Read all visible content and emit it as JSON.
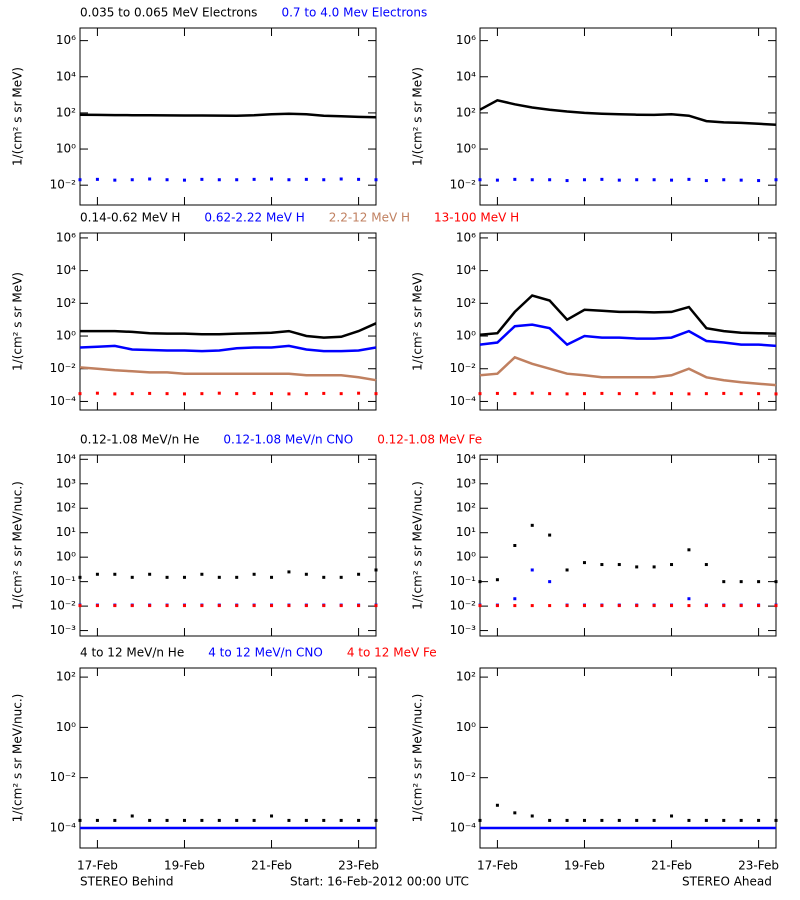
{
  "chart_data": [
    {
      "type": "line",
      "log": true,
      "ylabel": "1/(cm² s sr MeV)",
      "xlim": [
        0.6,
        7.4
      ],
      "xticks": [
        1,
        3,
        5,
        7
      ],
      "ylim": [
        0.0008,
        5000000
      ],
      "yticks": [
        {
          "value": 0.01,
          "label": "10⁻²"
        },
        {
          "value": 1,
          "label": "10⁰"
        },
        {
          "value": 100,
          "label": "10²"
        },
        {
          "value": 10000,
          "label": "10⁴"
        },
        {
          "value": 1000000,
          "label": "10⁶"
        }
      ],
      "x": [
        0.6,
        1.0,
        1.4,
        1.8,
        2.2,
        2.6,
        3.0,
        3.4,
        3.8,
        4.2,
        4.6,
        5.0,
        5.4,
        5.8,
        6.2,
        6.6,
        7.0,
        7.4
      ],
      "series": [
        {
          "name": "0.035 to 0.065 MeV Electrons",
          "color": "#000000",
          "style": "line",
          "values": [
            80,
            78,
            76,
            75,
            74,
            73,
            72,
            72,
            71,
            70,
            75,
            85,
            90,
            85,
            70,
            65,
            60,
            58
          ]
        },
        {
          "name": "0.7 to 4.0 Mev Electrons",
          "color": "#0000ff",
          "style": "points",
          "values": [
            0.02,
            0.021,
            0.019,
            0.02,
            0.022,
            0.02,
            0.019,
            0.021,
            0.02,
            0.02,
            0.021,
            0.022,
            0.02,
            0.021,
            0.02,
            0.022,
            0.021,
            0.02
          ]
        }
      ]
    },
    {
      "type": "line",
      "log": true,
      "ylabel": "1/(cm² s sr MeV)",
      "xlim": [
        0.6,
        7.4
      ],
      "xticks": [
        1,
        3,
        5,
        7
      ],
      "ylim": [
        0.0008,
        5000000
      ],
      "yticks": [
        {
          "value": 0.01,
          "label": "10⁻²"
        },
        {
          "value": 1,
          "label": "10⁰"
        },
        {
          "value": 100,
          "label": "10²"
        },
        {
          "value": 10000,
          "label": "10⁴"
        },
        {
          "value": 1000000,
          "label": "10⁶"
        }
      ],
      "x": [
        0.6,
        1.0,
        1.4,
        1.8,
        2.2,
        2.6,
        3.0,
        3.4,
        3.8,
        4.2,
        4.6,
        5.0,
        5.4,
        5.8,
        6.2,
        6.6,
        7.0,
        7.4
      ],
      "series": [
        {
          "color": "#000000",
          "style": "line",
          "values": [
            150,
            500,
            300,
            200,
            150,
            120,
            100,
            90,
            85,
            80,
            78,
            85,
            70,
            35,
            30,
            28,
            25,
            22
          ]
        },
        {
          "color": "#0000ff",
          "style": "points",
          "values": [
            0.02,
            0.019,
            0.021,
            0.02,
            0.02,
            0.018,
            0.02,
            0.021,
            0.019,
            0.02,
            0.02,
            0.019,
            0.021,
            0.018,
            0.02,
            0.019,
            0.018,
            0.02
          ]
        }
      ]
    },
    {
      "type": "line",
      "log": true,
      "ylabel": "1/(cm² s sr MeV)",
      "xlim": [
        0.6,
        7.4
      ],
      "xticks": [
        1,
        3,
        5,
        7
      ],
      "ylim": [
        3e-05,
        2000000
      ],
      "yticks": [
        {
          "value": 0.0001,
          "label": "10⁻⁴"
        },
        {
          "value": 0.01,
          "label": "10⁻²"
        },
        {
          "value": 1,
          "label": "10⁰"
        },
        {
          "value": 100,
          "label": "10²"
        },
        {
          "value": 10000,
          "label": "10⁴"
        },
        {
          "value": 1000000,
          "label": "10⁶"
        }
      ],
      "x": [
        0.6,
        1.0,
        1.4,
        1.8,
        2.2,
        2.6,
        3.0,
        3.4,
        3.8,
        4.2,
        4.6,
        5.0,
        5.4,
        5.8,
        6.2,
        6.6,
        7.0,
        7.4
      ],
      "series": [
        {
          "name": "0.14-0.62 MeV H",
          "color": "#000000",
          "style": "line",
          "values": [
            2,
            2,
            2,
            1.8,
            1.5,
            1.4,
            1.4,
            1.3,
            1.3,
            1.4,
            1.5,
            1.6,
            2,
            1,
            0.8,
            0.9,
            2,
            6
          ]
        },
        {
          "name": "0.62-2.22 MeV H",
          "color": "#0000ff",
          "style": "line",
          "values": [
            0.2,
            0.22,
            0.25,
            0.15,
            0.14,
            0.13,
            0.13,
            0.12,
            0.13,
            0.18,
            0.2,
            0.2,
            0.25,
            0.15,
            0.12,
            0.12,
            0.13,
            0.2
          ]
        },
        {
          "name": "2.2-12 MeV H",
          "color": "#c08060",
          "style": "line",
          "values": [
            0.012,
            0.01,
            0.008,
            0.007,
            0.006,
            0.006,
            0.005,
            0.005,
            0.005,
            0.005,
            0.005,
            0.005,
            0.005,
            0.004,
            0.004,
            0.004,
            0.003,
            0.002
          ]
        },
        {
          "name": "13-100 MeV H",
          "color": "#ff0000",
          "style": "points",
          "values": [
            0.0003,
            0.00032,
            0.00029,
            0.0003,
            0.00031,
            0.0003,
            0.00029,
            0.0003,
            0.00032,
            0.0003,
            0.00031,
            0.0003,
            0.00029,
            0.0003,
            0.00031,
            0.0003,
            0.00032,
            0.0003
          ]
        }
      ]
    },
    {
      "type": "line",
      "log": true,
      "ylabel": "1/(cm² s sr MeV)",
      "xlim": [
        0.6,
        7.4
      ],
      "xticks": [
        1,
        3,
        5,
        7
      ],
      "ylim": [
        3e-05,
        2000000
      ],
      "yticks": [
        {
          "value": 0.0001,
          "label": "10⁻⁴"
        },
        {
          "value": 0.01,
          "label": "10⁻²"
        },
        {
          "value": 1,
          "label": "10⁰"
        },
        {
          "value": 100,
          "label": "10²"
        },
        {
          "value": 10000,
          "label": "10⁴"
        },
        {
          "value": 1000000,
          "label": "10⁶"
        }
      ],
      "x": [
        0.6,
        1.0,
        1.4,
        1.8,
        2.2,
        2.6,
        3.0,
        3.4,
        3.8,
        4.2,
        4.6,
        5.0,
        5.4,
        5.8,
        6.2,
        6.6,
        7.0,
        7.4
      ],
      "series": [
        {
          "color": "#000000",
          "style": "line",
          "values": [
            1.2,
            1.5,
            30,
            300,
            150,
            10,
            40,
            35,
            30,
            30,
            28,
            30,
            60,
            3,
            2,
            1.6,
            1.5,
            1.4
          ]
        },
        {
          "color": "#0000ff",
          "style": "line",
          "values": [
            0.3,
            0.4,
            4,
            5,
            3,
            0.3,
            1,
            0.8,
            0.8,
            0.7,
            0.7,
            0.8,
            2,
            0.5,
            0.4,
            0.3,
            0.3,
            0.25
          ]
        },
        {
          "color": "#c08060",
          "style": "line",
          "values": [
            0.004,
            0.005,
            0.05,
            0.02,
            0.01,
            0.005,
            0.004,
            0.003,
            0.003,
            0.003,
            0.003,
            0.004,
            0.01,
            0.003,
            0.002,
            0.0015,
            0.0012,
            0.001
          ]
        },
        {
          "color": "#ff0000",
          "style": "points",
          "values": [
            0.0003,
            0.00031,
            0.0003,
            0.00032,
            0.0003,
            0.00029,
            0.0003,
            0.00031,
            0.0003,
            0.0003,
            0.00032,
            0.0003,
            0.00029,
            0.0003,
            0.00031,
            0.0003,
            0.0003,
            0.00029
          ]
        }
      ]
    },
    {
      "type": "line",
      "log": true,
      "ylabel": "1/(cm² s sr MeV/nuc.)",
      "xlim": [
        0.6,
        7.4
      ],
      "xticks": [
        1,
        3,
        5,
        7
      ],
      "ylim": [
        0.0006,
        15000
      ],
      "yticks": [
        {
          "value": 0.001,
          "label": "10⁻³"
        },
        {
          "value": 0.01,
          "label": "10⁻²"
        },
        {
          "value": 0.1,
          "label": "10⁻¹"
        },
        {
          "value": 1,
          "label": "10⁰"
        },
        {
          "value": 10,
          "label": "10¹"
        },
        {
          "value": 100,
          "label": "10²"
        },
        {
          "value": 1000,
          "label": "10³"
        },
        {
          "value": 10000,
          "label": "10⁴"
        }
      ],
      "x": [
        0.6,
        1.0,
        1.4,
        1.8,
        2.2,
        2.6,
        3.0,
        3.4,
        3.8,
        4.2,
        4.6,
        5.0,
        5.4,
        5.8,
        6.2,
        6.6,
        7.0,
        7.4
      ],
      "series": [
        {
          "name": "0.12-1.08 MeV/n He",
          "color": "#000000",
          "style": "points",
          "values": [
            0.15,
            0.2,
            0.2,
            0.15,
            0.2,
            0.15,
            0.15,
            0.2,
            0.15,
            0.15,
            0.2,
            0.15,
            0.25,
            0.2,
            0.15,
            0.15,
            0.2,
            0.3
          ]
        },
        {
          "name": "0.12-1.08 MeV/n CNO",
          "color": "#0000ff",
          "style": "points",
          "values": [
            0.011,
            0.011,
            0.011,
            0.011,
            0.011,
            0.011,
            0.011,
            0.011,
            0.011,
            0.011,
            0.011,
            0.011,
            0.011,
            0.011,
            0.011,
            0.011,
            0.011,
            0.011
          ]
        },
        {
          "name": "0.12-1.08 MeV Fe",
          "color": "#ff0000",
          "style": "points",
          "values": [
            0.0105,
            0.0105,
            0.0105,
            0.0105,
            0.0105,
            0.0105,
            0.0105,
            0.0105,
            0.0105,
            0.0105,
            0.0105,
            0.0105,
            0.0105,
            0.0105,
            0.0105,
            0.0105,
            0.0105,
            0.0105
          ]
        }
      ]
    },
    {
      "type": "line",
      "log": true,
      "ylabel": "1/(cm² s sr MeV/nuc.)",
      "xlim": [
        0.6,
        7.4
      ],
      "xticks": [
        1,
        3,
        5,
        7
      ],
      "ylim": [
        0.0006,
        15000
      ],
      "yticks": [
        {
          "value": 0.001,
          "label": "10⁻³"
        },
        {
          "value": 0.01,
          "label": "10⁻²"
        },
        {
          "value": 0.1,
          "label": "10⁻¹"
        },
        {
          "value": 1,
          "label": "10⁰"
        },
        {
          "value": 10,
          "label": "10¹"
        },
        {
          "value": 100,
          "label": "10²"
        },
        {
          "value": 1000,
          "label": "10³"
        },
        {
          "value": 10000,
          "label": "10⁴"
        }
      ],
      "x": [
        0.6,
        1.0,
        1.4,
        1.8,
        2.2,
        2.6,
        3.0,
        3.4,
        3.8,
        4.2,
        4.6,
        5.0,
        5.4,
        5.8,
        6.2,
        6.6,
        7.0,
        7.4
      ],
      "series": [
        {
          "color": "#000000",
          "style": "points",
          "values": [
            0.1,
            0.12,
            3,
            20,
            8,
            0.3,
            0.6,
            0.5,
            0.5,
            0.4,
            0.4,
            0.5,
            2,
            0.5,
            0.1,
            0.1,
            0.1,
            0.1
          ]
        },
        {
          "color": "#0000ff",
          "style": "points",
          "values": [
            0.011,
            0.011,
            0.02,
            0.3,
            0.1,
            0.011,
            0.011,
            0.011,
            0.011,
            0.011,
            0.011,
            0.011,
            0.02,
            0.011,
            0.011,
            0.011,
            0.011,
            0.011
          ]
        },
        {
          "color": "#ff0000",
          "style": "points",
          "values": [
            0.0105,
            0.0105,
            0.0105,
            0.0105,
            0.0105,
            0.0105,
            0.0105,
            0.0105,
            0.0105,
            0.0105,
            0.0105,
            0.0105,
            0.0105,
            0.0105,
            0.0105,
            0.0105,
            0.0105,
            0.0105
          ]
        }
      ]
    },
    {
      "type": "line",
      "log": true,
      "ylabel": "1/(cm² s sr MeV/nuc.)",
      "xlim": [
        0.6,
        7.4
      ],
      "xticks": [
        {
          "value": 1,
          "label": "17-Feb"
        },
        {
          "value": 3,
          "label": "19-Feb"
        },
        {
          "value": 5,
          "label": "21-Feb"
        },
        {
          "value": 7,
          "label": "23-Feb"
        }
      ],
      "ylim": [
        1.6e-05,
        230
      ],
      "yticks": [
        {
          "value": 0.0001,
          "label": "10⁻⁴"
        },
        {
          "value": 0.01,
          "label": "10⁻²"
        },
        {
          "value": 1,
          "label": "10⁰"
        },
        {
          "value": 100,
          "label": "10²"
        }
      ],
      "x": [
        0.6,
        1.0,
        1.4,
        1.8,
        2.2,
        2.6,
        3.0,
        3.4,
        3.8,
        4.2,
        4.6,
        5.0,
        5.4,
        5.8,
        6.2,
        6.6,
        7.0,
        7.4
      ],
      "series": [
        {
          "name": "4 to 12 MeV/n He",
          "color": "#000000",
          "style": "points",
          "values": [
            0.0002,
            0.0002,
            0.0002,
            0.0003,
            0.0002,
            0.0002,
            0.0002,
            0.0002,
            0.0002,
            0.0002,
            0.0002,
            0.0003,
            0.0002,
            0.0002,
            0.0002,
            0.0002,
            0.0002,
            0.0002
          ]
        },
        {
          "name": "4 to 12 MeV/n CNO",
          "color": "#0000ff",
          "style": "line",
          "values": [
            0.0001,
            0.0001,
            0.0001,
            0.0001,
            0.0001,
            0.0001,
            0.0001,
            0.0001,
            0.0001,
            0.0001,
            0.0001,
            0.0001,
            0.0001,
            0.0001,
            0.0001,
            0.0001,
            0.0001,
            0.0001
          ]
        },
        {
          "name": "4 to 12 MeV Fe",
          "color": "#ff0000",
          "style": "points",
          "values": [
            null,
            null,
            null,
            null,
            null,
            null,
            null,
            null,
            null,
            null,
            null,
            null,
            null,
            null,
            null,
            null,
            null,
            null
          ]
        }
      ]
    },
    {
      "type": "line",
      "log": true,
      "ylabel": "1/(cm² s sr MeV/nuc.)",
      "xlim": [
        0.6,
        7.4
      ],
      "xticks": [
        {
          "value": 1,
          "label": "17-Feb"
        },
        {
          "value": 3,
          "label": "19-Feb"
        },
        {
          "value": 5,
          "label": "21-Feb"
        },
        {
          "value": 7,
          "label": "23-Feb"
        }
      ],
      "ylim": [
        1.6e-05,
        230
      ],
      "yticks": [
        {
          "value": 0.0001,
          "label": "10⁻⁴"
        },
        {
          "value": 0.01,
          "label": "10⁻²"
        },
        {
          "value": 1,
          "label": "10⁰"
        },
        {
          "value": 100,
          "label": "10²"
        }
      ],
      "x": [
        0.6,
        1.0,
        1.4,
        1.8,
        2.2,
        2.6,
        3.0,
        3.4,
        3.8,
        4.2,
        4.6,
        5.0,
        5.4,
        5.8,
        6.2,
        6.6,
        7.0,
        7.4
      ],
      "series": [
        {
          "color": "#000000",
          "style": "points",
          "values": [
            0.0002,
            0.0008,
            0.0004,
            0.0003,
            0.0002,
            0.0002,
            0.0002,
            0.0002,
            0.0002,
            0.0002,
            0.0002,
            0.0003,
            0.0002,
            0.0002,
            0.0002,
            0.0002,
            0.0002,
            0.0002
          ]
        },
        {
          "color": "#0000ff",
          "style": "line",
          "values": [
            0.0001,
            0.0001,
            0.0001,
            0.0001,
            0.0001,
            0.0001,
            0.0001,
            0.0001,
            0.0001,
            0.0001,
            0.0001,
            0.0001,
            0.0001,
            0.0001,
            0.0001,
            0.0001,
            0.0001,
            0.0001
          ]
        }
      ]
    }
  ],
  "footer": {
    "left": "STEREO Behind",
    "center": "Start: 16-Feb-2012 00:00 UTC",
    "right": "STEREO Ahead"
  }
}
